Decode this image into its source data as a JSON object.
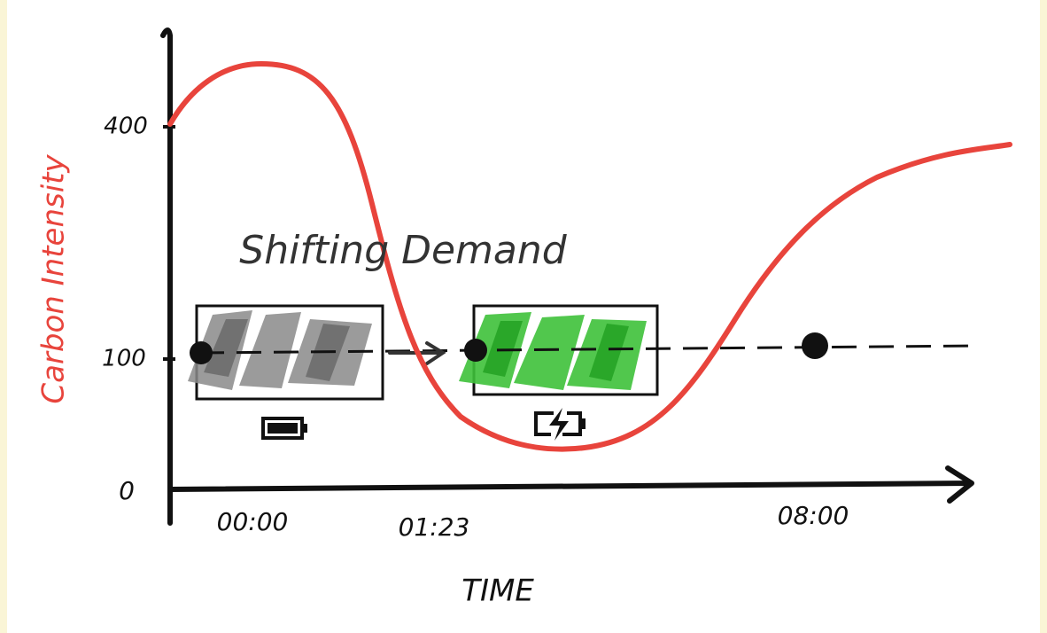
{
  "diagram": {
    "y_axis": {
      "label": "Carbon Intensity",
      "ticks": [
        "400",
        "100",
        "0"
      ]
    },
    "x_axis": {
      "label": "TIME",
      "ticks": [
        "00:00",
        "01:23",
        "08:00"
      ]
    },
    "annotation": "Shifting Demand"
  }
}
